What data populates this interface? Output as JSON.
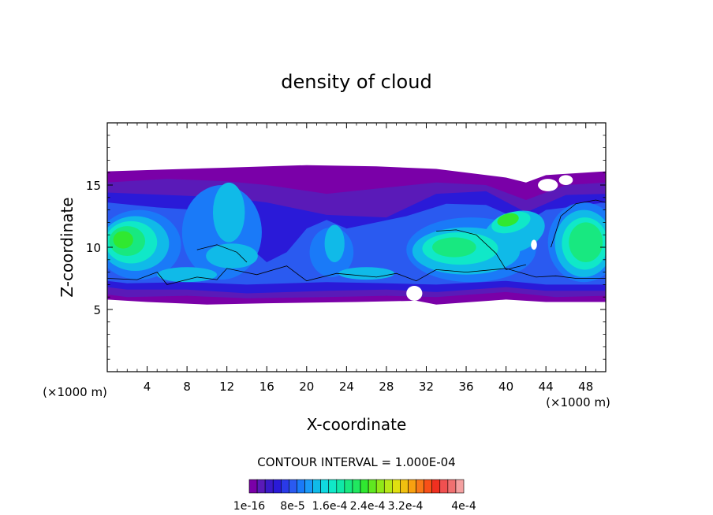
{
  "chart_data": {
    "type": "heatmap",
    "title": "density of cloud",
    "xlabel": "X-coordinate",
    "ylabel": "Z-coordinate",
    "x_unit_left": "(×1000 m)",
    "x_unit_right": "(×1000 m)",
    "xlim": [
      0,
      50
    ],
    "ylim": [
      0,
      20
    ],
    "x_ticks": [
      4,
      8,
      12,
      16,
      20,
      24,
      28,
      32,
      36,
      40,
      44,
      48
    ],
    "x_tick_labels": [
      "4",
      "8",
      "12",
      "16",
      "20",
      "24",
      "28",
      "32",
      "36",
      "40",
      "44",
      "48"
    ],
    "y_ticks": [
      5,
      10,
      15
    ],
    "y_tick_labels": [
      "5",
      "10",
      "15"
    ],
    "contour_interval_text": "CONTOUR INTERVAL = 1.000E-04",
    "colorbar": {
      "colors": [
        "#7a00a8",
        "#5a1ab8",
        "#3a1ac8",
        "#2a1ad8",
        "#2a3ae8",
        "#2a5af0",
        "#1a7af8",
        "#1a9af8",
        "#10bae8",
        "#10d8e0",
        "#10e8c8",
        "#10e8a8",
        "#18e880",
        "#20e860",
        "#30e830",
        "#60e820",
        "#90e818",
        "#b8e818",
        "#e0e010",
        "#f0c010",
        "#f8a010",
        "#f87818",
        "#f85018",
        "#f03020",
        "#f05050",
        "#f07070",
        "#f4a0a0"
      ],
      "labels": [
        "1e-16",
        "8e-5",
        "1.6e-4",
        "2.4e-4",
        "3.2e-4",
        "4e-4"
      ],
      "min_label": "1e-16",
      "max_label": "4e-4"
    },
    "cloud_layer": {
      "z_bottom_km": 5.5,
      "z_top_km": 16.5,
      "description_values": [
        {
          "region": "x 0-6",
          "max_density": 0.00024
        },
        {
          "region": "x 9-14",
          "max_density": 0.00016
        },
        {
          "region": "x 31-37",
          "max_density": 0.0002
        },
        {
          "region": "x 38-43",
          "max_density": 0.00024
        },
        {
          "region": "x 46-50",
          "max_density": 0.00024
        }
      ]
    }
  }
}
